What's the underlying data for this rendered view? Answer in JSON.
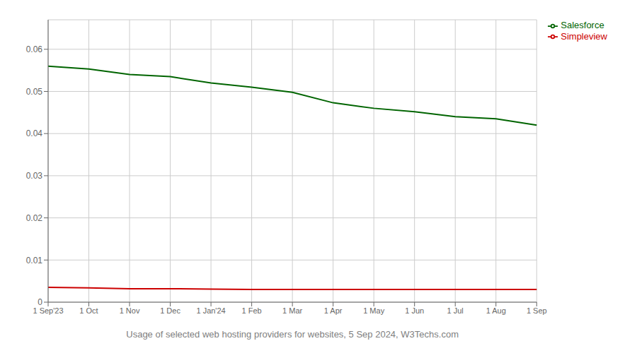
{
  "chart_data": {
    "type": "line",
    "xlabel": "Usage of selected web hosting providers for websites, 5 Sep 2024, W3Techs.com",
    "categories": [
      "1 Sep'23",
      "1 Oct",
      "1 Nov",
      "1 Dec",
      "1 Jan'24",
      "1 Feb",
      "1 Mar",
      "1 Apr",
      "1 May",
      "1 Jun",
      "1 Jul",
      "1 Aug",
      "1 Sep"
    ],
    "series": [
      {
        "name": "Salesforce",
        "color": "#006400",
        "values": [
          0.056,
          0.0553,
          0.054,
          0.0535,
          0.052,
          0.051,
          0.0498,
          0.0473,
          0.046,
          0.0452,
          0.044,
          0.0435,
          0.042
        ]
      },
      {
        "name": "Simpleview",
        "color": "#cc0000",
        "values": [
          0.0035,
          0.0034,
          0.0032,
          0.0032,
          0.0031,
          0.003,
          0.003,
          0.003,
          0.003,
          0.003,
          0.003,
          0.003,
          0.003
        ]
      }
    ],
    "ylim": [
      0,
      0.067
    ],
    "yticks": [
      0,
      0.01,
      0.02,
      0.03,
      0.04,
      0.05,
      0.06
    ],
    "grid": true,
    "legend": "upper right"
  }
}
